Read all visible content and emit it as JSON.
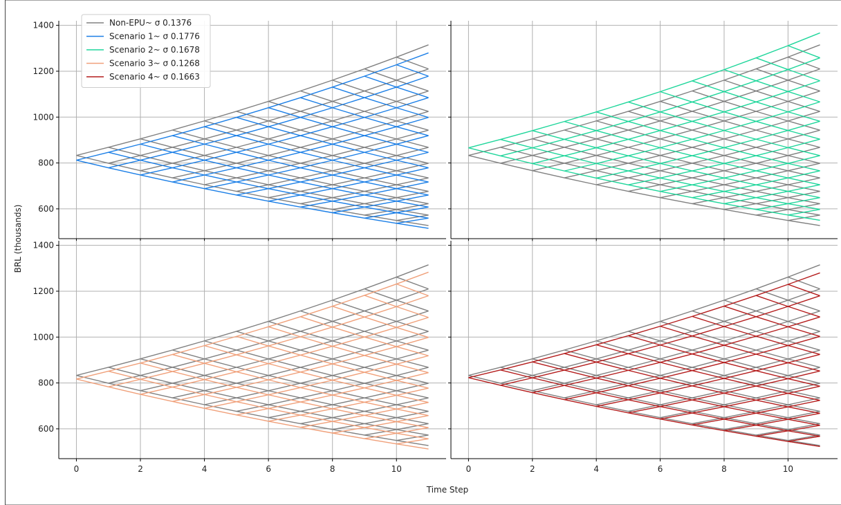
{
  "chart_data": {
    "type": "line",
    "xlabel": "Time Step",
    "ylabel": "BRL (thousands)",
    "xlim": [
      -0.55,
      11.55
    ],
    "ylim": [
      470,
      1420
    ],
    "x_ticks": [
      0,
      2,
      4,
      6,
      8,
      10
    ],
    "y_ticks": [
      600,
      800,
      1000,
      1200,
      1400
    ],
    "steps": 11,
    "grid": true,
    "legend_position": "upper-left",
    "baseline": {
      "name": "Non-EPU~ σ 0.1376",
      "color": "#808080",
      "start": 833,
      "up_end": 1315,
      "down_end": 527
    },
    "scenarios": [
      {
        "name": "Scenario 1~ σ 0.1776",
        "color": "#1a7ee6",
        "start": 812,
        "up_end": 1280,
        "down_end": 515
      },
      {
        "name": "Scenario 2~ σ 0.1678",
        "color": "#1fd69b",
        "start": 866,
        "up_end": 1367,
        "down_end": 550
      },
      {
        "name": "Scenario 3~ σ 0.1268",
        "color": "#f0a07a",
        "start": 817,
        "up_end": 1283,
        "down_end": 512
      },
      {
        "name": "Scenario 4~ σ 0.1663",
        "color": "#b41c1c",
        "start": 823,
        "up_end": 1280,
        "down_end": 523
      }
    ]
  }
}
